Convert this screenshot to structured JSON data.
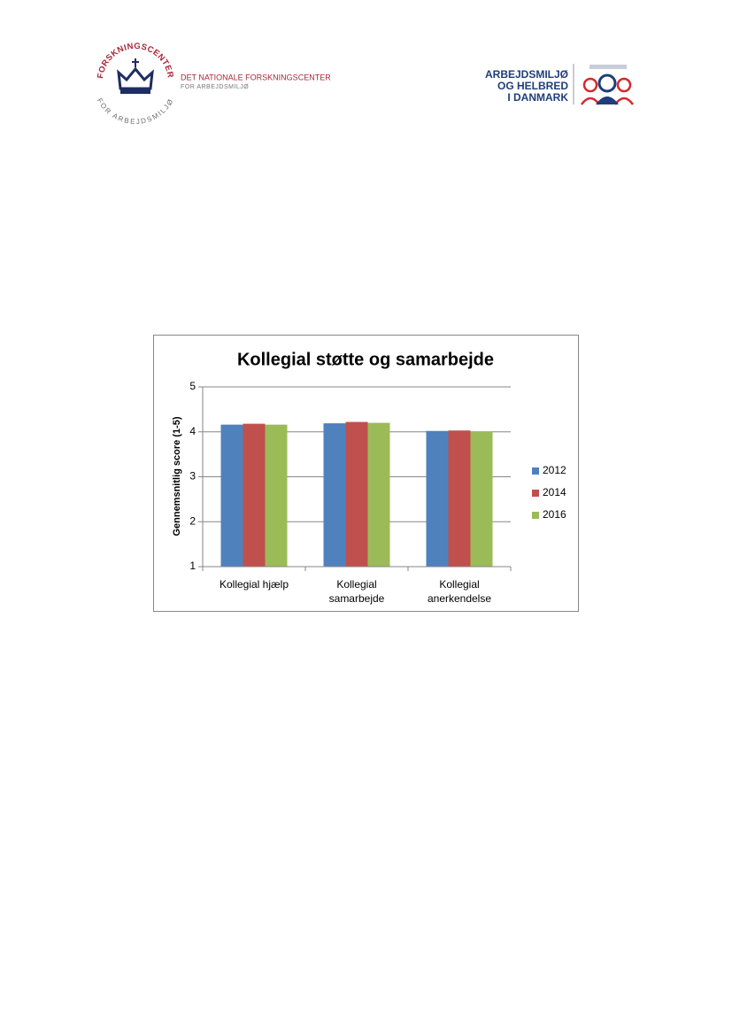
{
  "header": {
    "logo_left": {
      "ring_top": "FORSKNINGSCENTER",
      "ring_bottom": "FOR ARBEJDSMILJØ",
      "name": "DET NATIONALE FORSKNINGSCENTER",
      "subname": "FOR ARBEJDSMILJØ"
    },
    "logo_right": {
      "lines": [
        "ARBEJDSMILJØ",
        "OG HELBRED",
        "I DANMARK"
      ]
    }
  },
  "chart_data": {
    "type": "bar",
    "title": "Kollegial støtte og samarbejde",
    "y_label": "Gennemsnitlig score (1-5)",
    "categories": [
      "Kollegial hjælp",
      "Kollegial samarbejde",
      "Kollegial anerkendelse"
    ],
    "series": [
      {
        "name": "2012",
        "color": "#4f81bd",
        "values": [
          4.16,
          4.19,
          4.02
        ]
      },
      {
        "name": "2014",
        "color": "#c0504d",
        "values": [
          4.18,
          4.22,
          4.03
        ]
      },
      {
        "name": "2016",
        "color": "#9bbb59",
        "values": [
          4.16,
          4.2,
          4.0
        ]
      }
    ],
    "ylim": [
      1,
      5
    ],
    "yticks": [
      1,
      2,
      3,
      4,
      5
    ],
    "grid": true,
    "legend": "right"
  }
}
